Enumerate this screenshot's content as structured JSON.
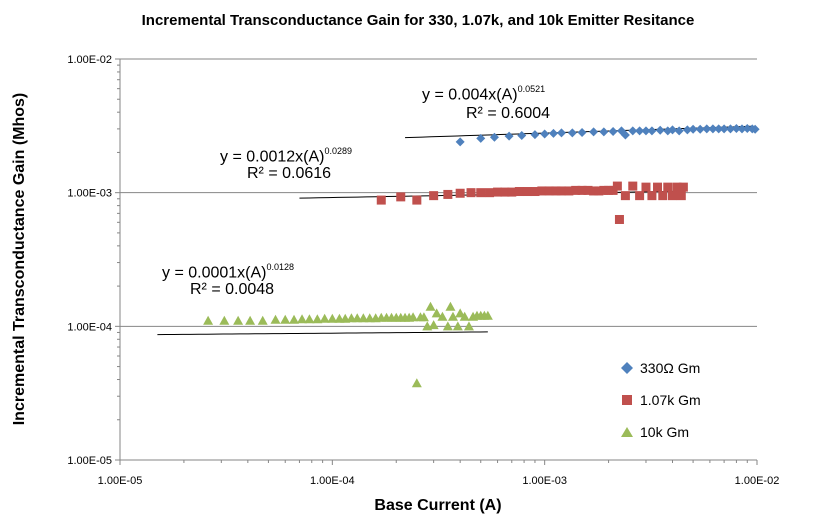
{
  "chart_data": {
    "type": "scatter",
    "title": "Incremental Transconductance Gain for 330, 1.07k, and 10k Emitter Resitance",
    "xlabel": "Base Current (A)",
    "ylabel": "Incremental Transconductance  Gain (Mhos)",
    "x_scale": "log",
    "y_scale": "log",
    "xlim": [
      1e-05,
      0.01
    ],
    "ylim": [
      1e-05,
      0.01
    ],
    "x_ticks": [
      "1.00E-05",
      "1.00E-04",
      "1.00E-03",
      "1.00E-02"
    ],
    "y_ticks": [
      "1.00E-05",
      "1.00E-04",
      "1.00E-03",
      "1.00E-02"
    ],
    "grid": "horizontal major",
    "legend_position": "lower-right",
    "series": [
      {
        "name": "330Ω Gm",
        "color": "#4f81bd",
        "marker": "diamond",
        "trendline": {
          "coef": 0.004,
          "exp": 0.0521,
          "xrange": [
            0.00022,
            0.0095
          ],
          "equation_main": "y = 0.004x(A)",
          "equation_exp": "0.0521",
          "r2": "R² = 0.6004"
        },
        "points": [
          [
            0.0004,
            0.0024
          ],
          [
            0.0005,
            0.00255
          ],
          [
            0.00058,
            0.0026
          ],
          [
            0.00068,
            0.00265
          ],
          [
            0.00078,
            0.00268
          ],
          [
            0.0009,
            0.00272
          ],
          [
            0.001,
            0.00275
          ],
          [
            0.0011,
            0.00278
          ],
          [
            0.0012,
            0.0028
          ],
          [
            0.00135,
            0.0028
          ],
          [
            0.0015,
            0.00282
          ],
          [
            0.0017,
            0.00285
          ],
          [
            0.0019,
            0.00285
          ],
          [
            0.0021,
            0.00287
          ],
          [
            0.0023,
            0.0029
          ],
          [
            0.0024,
            0.0027
          ],
          [
            0.0026,
            0.0029
          ],
          [
            0.0028,
            0.0029
          ],
          [
            0.003,
            0.0029
          ],
          [
            0.0032,
            0.0029
          ],
          [
            0.0035,
            0.00293
          ],
          [
            0.0038,
            0.0029
          ],
          [
            0.004,
            0.00295
          ],
          [
            0.0043,
            0.0029
          ],
          [
            0.0047,
            0.00295
          ],
          [
            0.005,
            0.00298
          ],
          [
            0.0054,
            0.00298
          ],
          [
            0.0058,
            0.003
          ],
          [
            0.0062,
            0.003
          ],
          [
            0.0066,
            0.003
          ],
          [
            0.007,
            0.003
          ],
          [
            0.0075,
            0.003
          ],
          [
            0.008,
            0.00302
          ],
          [
            0.0085,
            0.003
          ],
          [
            0.009,
            0.00302
          ],
          [
            0.0095,
            0.003
          ],
          [
            0.0098,
            0.00298
          ]
        ]
      },
      {
        "name": "1.07k Gm",
        "color": "#c0504d",
        "marker": "square",
        "trendline": {
          "coef": 0.0012,
          "exp": 0.0289,
          "xrange": [
            7e-05,
            0.0045
          ],
          "equation_main": "y = 0.0012x(A)",
          "equation_exp": "0.0289",
          "r2": "R² = 0.0616"
        },
        "points": [
          [
            0.00017,
            0.00088
          ],
          [
            0.00021,
            0.00093
          ],
          [
            0.00025,
            0.00088
          ],
          [
            0.0003,
            0.00095
          ],
          [
            0.00035,
            0.00097
          ],
          [
            0.0004,
            0.00099
          ],
          [
            0.00045,
            0.001
          ],
          [
            0.0005,
            0.001
          ],
          [
            0.00055,
            0.001
          ],
          [
            0.0006,
            0.00101
          ],
          [
            0.00065,
            0.00101
          ],
          [
            0.0007,
            0.00101
          ],
          [
            0.00076,
            0.00102
          ],
          [
            0.00083,
            0.00102
          ],
          [
            0.0009,
            0.00102
          ],
          [
            0.00097,
            0.00103
          ],
          [
            0.00105,
            0.00103
          ],
          [
            0.00113,
            0.00103
          ],
          [
            0.0012,
            0.00103
          ],
          [
            0.0013,
            0.00103
          ],
          [
            0.0014,
            0.00104
          ],
          [
            0.0015,
            0.00104
          ],
          [
            0.0016,
            0.00104
          ],
          [
            0.0017,
            0.00103
          ],
          [
            0.0018,
            0.00103
          ],
          [
            0.0019,
            0.00104
          ],
          [
            0.002,
            0.00104
          ],
          [
            0.0021,
            0.00104
          ],
          [
            0.0022,
            0.00112
          ],
          [
            0.00225,
            0.00063
          ],
          [
            0.0024,
            0.00095
          ],
          [
            0.0026,
            0.00112
          ],
          [
            0.0028,
            0.00095
          ],
          [
            0.003,
            0.0011
          ],
          [
            0.0032,
            0.00095
          ],
          [
            0.0034,
            0.0011
          ],
          [
            0.0036,
            0.00095
          ],
          [
            0.0038,
            0.0011
          ],
          [
            0.004,
            0.00095
          ],
          [
            0.0042,
            0.0011
          ],
          [
            0.0044,
            0.00095
          ],
          [
            0.0045,
            0.0011
          ]
        ]
      },
      {
        "name": "10k Gm",
        "color": "#9bbb59",
        "marker": "triangle",
        "trendline": {
          "coef": 0.0001,
          "exp": 0.0128,
          "xrange": [
            1.5e-05,
            0.00054
          ],
          "equation_main": "y = 0.0001x(A)",
          "equation_exp": "0.0128",
          "r2": "R² = 0.0048"
        },
        "points": [
          [
            2.6e-05,
            0.00011
          ],
          [
            3.1e-05,
            0.00011
          ],
          [
            3.6e-05,
            0.00011
          ],
          [
            4.1e-05,
            0.00011
          ],
          [
            4.7e-05,
            0.00011
          ],
          [
            5.4e-05,
            0.000112
          ],
          [
            6e-05,
            0.000112
          ],
          [
            6.6e-05,
            0.000112
          ],
          [
            7.2e-05,
            0.000113
          ],
          [
            7.8e-05,
            0.000113
          ],
          [
            8.5e-05,
            0.000113
          ],
          [
            9.2e-05,
            0.000114
          ],
          [
            0.0001,
            0.000114
          ],
          [
            0.000108,
            0.000114
          ],
          [
            0.000115,
            0.000114
          ],
          [
            0.000123,
            0.000115
          ],
          [
            0.000131,
            0.000115
          ],
          [
            0.00014,
            0.000115
          ],
          [
            0.00015,
            0.000115
          ],
          [
            0.00016,
            0.000115
          ],
          [
            0.00017,
            0.000116
          ],
          [
            0.00018,
            0.000116
          ],
          [
            0.00019,
            0.000116
          ],
          [
            0.0002,
            0.000116
          ],
          [
            0.00021,
            0.000116
          ],
          [
            0.00022,
            0.000116
          ],
          [
            0.00023,
            0.000116
          ],
          [
            0.00024,
            0.000117
          ],
          [
            0.00025,
            3.75e-05
          ],
          [
            0.00026,
            0.000117
          ],
          [
            0.00027,
            0.000117
          ],
          [
            0.00028,
            0.0001
          ],
          [
            0.00029,
            0.00014
          ],
          [
            0.0003,
            0.000102
          ],
          [
            0.00031,
            0.000125
          ],
          [
            0.00033,
            0.000118
          ],
          [
            0.00035,
            0.0001
          ],
          [
            0.00036,
            0.00014
          ],
          [
            0.00037,
            0.000118
          ],
          [
            0.00039,
            0.0001
          ],
          [
            0.0004,
            0.000125
          ],
          [
            0.00042,
            0.000118
          ],
          [
            0.00044,
            0.0001
          ],
          [
            0.00046,
            0.000118
          ],
          [
            0.00048,
            0.00012
          ],
          [
            0.0005,
            0.00012
          ],
          [
            0.00052,
            0.00012
          ],
          [
            0.00054,
            0.00012
          ]
        ]
      }
    ]
  }
}
